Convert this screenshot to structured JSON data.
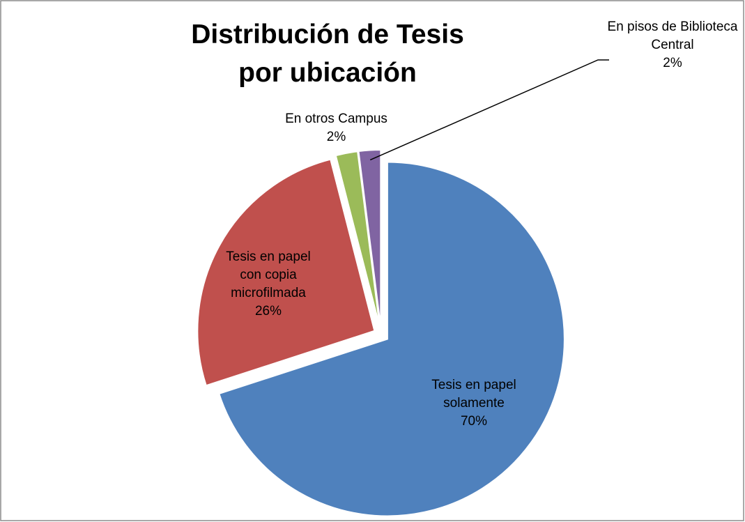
{
  "chart_data": {
    "type": "pie",
    "title": "Distribución de Tesis por ubicación",
    "categories": [
      "Tesis en papel solamente",
      "Tesis en papel con copia microfilmada",
      "En otros Campus",
      "En pisos de Biblioteca Central"
    ],
    "values": [
      70,
      26,
      2,
      2
    ],
    "value_labels": [
      "70%",
      "26%",
      "2%",
      "2%"
    ],
    "colors": [
      "#4f81bd",
      "#c0504d",
      "#9bbb59",
      "#8064a2"
    ],
    "start_angle": 0,
    "direction": "clockwise",
    "exploded": true
  }
}
